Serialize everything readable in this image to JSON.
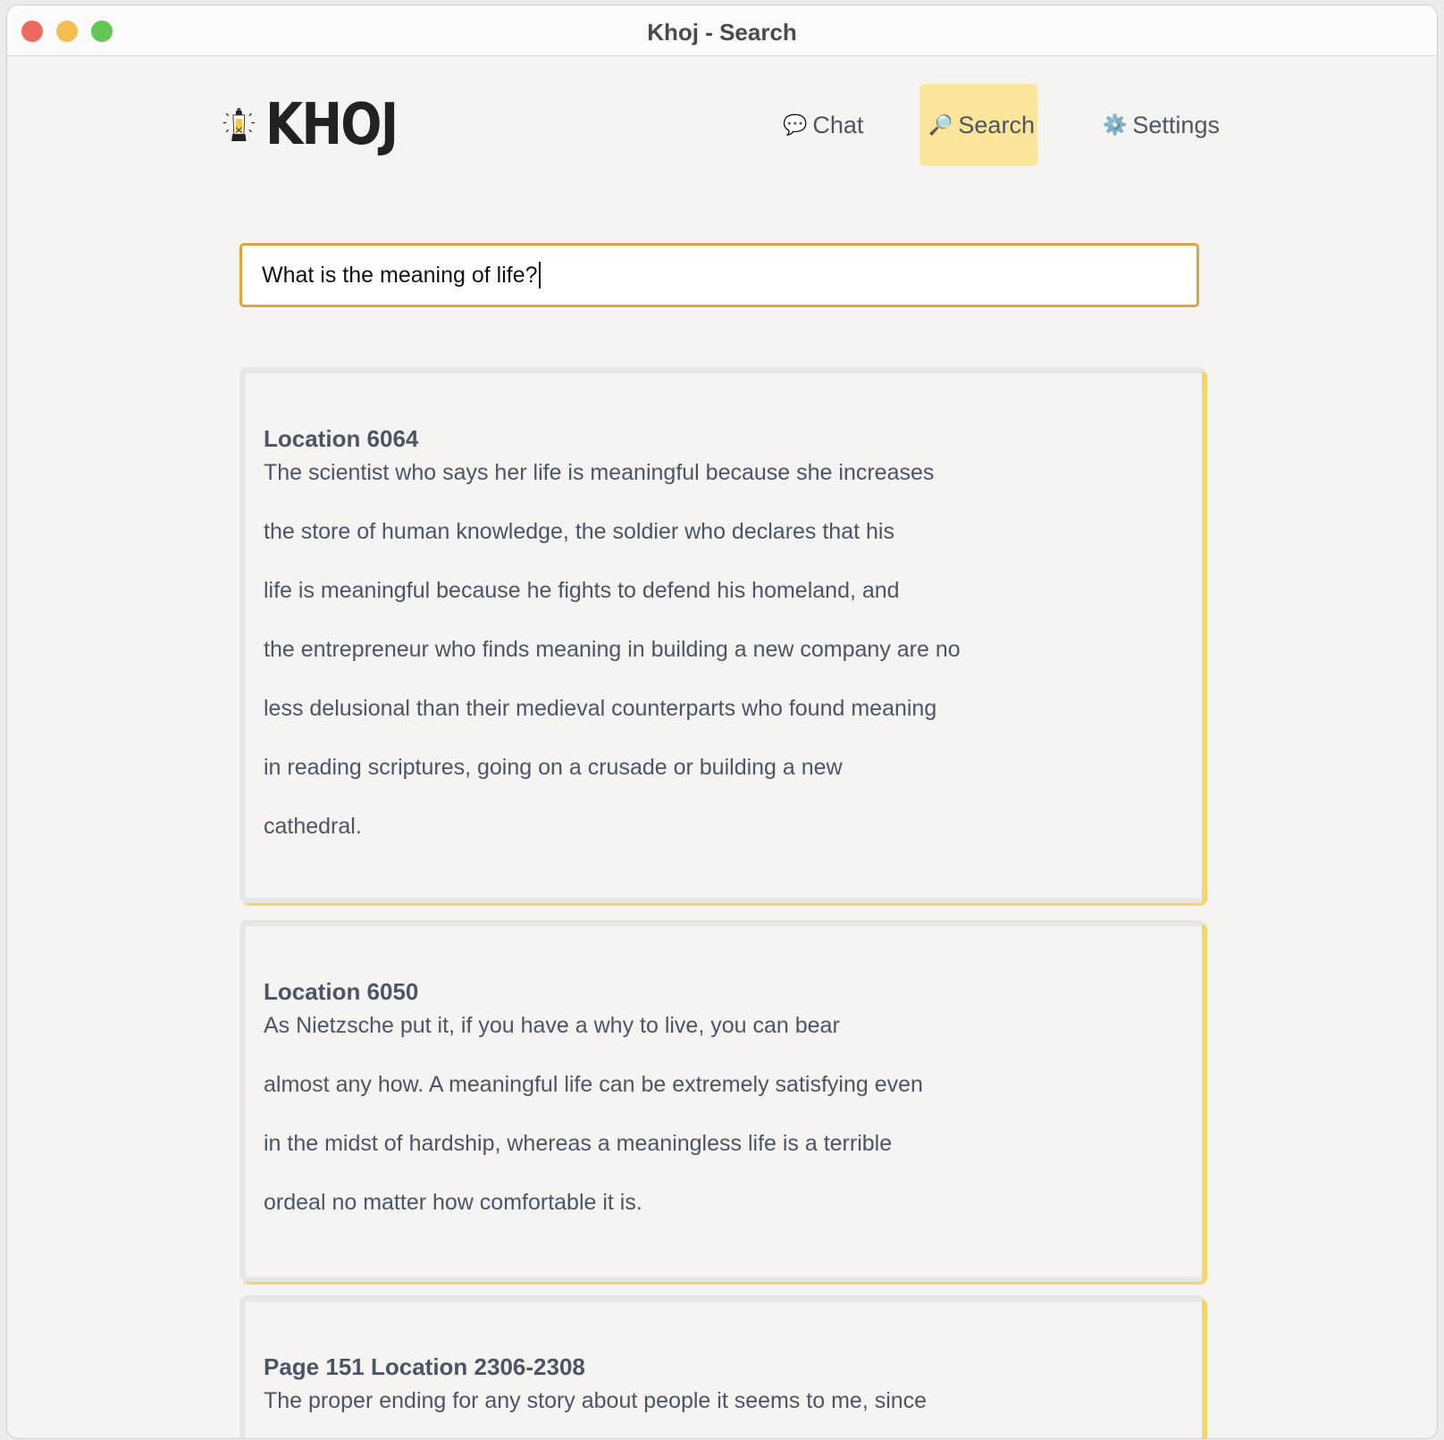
{
  "window": {
    "title": "Khoj - Search"
  },
  "header": {
    "logo_text": "KHOJ",
    "nav": [
      {
        "label": "Chat",
        "icon": "speech-bubble-icon",
        "glyph": "💬"
      },
      {
        "label": "Search",
        "icon": "magnifier-icon",
        "glyph": "🔎",
        "active": true
      },
      {
        "label": "Settings",
        "icon": "gear-icon",
        "glyph": "⚙️"
      }
    ]
  },
  "search": {
    "value": "What is the meaning of life?"
  },
  "results": [
    {
      "heading": "Location 6064",
      "lines": [
        "The scientist who says her life is meaningful because she increases",
        "the store of human knowledge, the soldier who declares that his",
        "life is meaningful because he fights to defend his homeland, and",
        "the entrepreneur who finds meaning in building a new company are no",
        "less delusional than their medieval counterparts who found meaning",
        "in reading scriptures, going on a crusade or building a new",
        "cathedral."
      ]
    },
    {
      "heading": "Location 6050",
      "lines": [
        "As Nietzsche put it, if you have a why to live, you can bear",
        "almost any how. A meaningful life can be extremely satisfying even",
        "in the midst of hardship, whereas a meaningless life is a terrible",
        "ordeal no matter how comfortable it is."
      ]
    },
    {
      "heading": "Page 151 Location 2306-2308",
      "lines": [
        "The proper ending for any story about people it seems to me, since"
      ]
    }
  ],
  "colors": {
    "accent": "#e4a33a",
    "nav_active": "#fae59a",
    "card_edge": "#f5d56a",
    "text": "#4b5565"
  }
}
